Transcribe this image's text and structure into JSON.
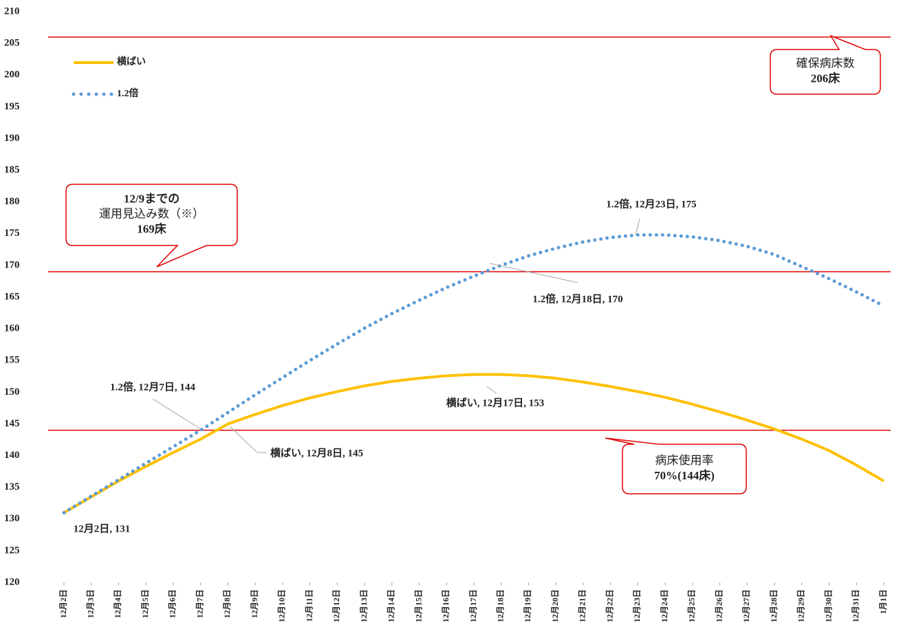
{
  "chart_data": {
    "type": "line",
    "categories": [
      "12月2日",
      "12月3日",
      "12月4日",
      "12月5日",
      "12月6日",
      "12月7日",
      "12月8日",
      "12月9日",
      "12月10日",
      "12月11日",
      "12月12日",
      "12月13日",
      "12月14日",
      "12月15日",
      "12月16日",
      "12月17日",
      "12月18日",
      "12月19日",
      "12月20日",
      "12月21日",
      "12月22日",
      "12月23日",
      "12月24日",
      "12月25日",
      "12月26日",
      "12月27日",
      "12月28日",
      "12月29日",
      "12月30日",
      "12月31日",
      "1月1日"
    ],
    "series": [
      {
        "name": "横ばい",
        "color": "#ffc000",
        "style": "solid",
        "values": [
          131,
          133.5,
          136,
          138.3,
          140.5,
          142.6,
          145,
          146.5,
          147.9,
          149.1,
          150.1,
          151,
          151.7,
          152.2,
          152.6,
          152.8,
          152.8,
          152.6,
          152.2,
          151.6,
          150.9,
          150.1,
          149.2,
          148.1,
          146.9,
          145.6,
          144.2,
          142.6,
          140.8,
          138.5,
          136
        ]
      },
      {
        "name": "1.2倍",
        "color": "#5b9bd5",
        "style": "dotted",
        "values": [
          131,
          133.6,
          136.2,
          138.8,
          141.4,
          144,
          146.8,
          149.6,
          152.3,
          155,
          157.6,
          160.1,
          162.4,
          164.5,
          166.5,
          168.3,
          170,
          171.5,
          172.7,
          173.7,
          174.4,
          174.8,
          174.8,
          174.5,
          173.9,
          173,
          171.7,
          169.8,
          167.9,
          165.8,
          163.6
        ]
      }
    ],
    "ylim": [
      120,
      210
    ],
    "yticks": [
      120,
      125,
      130,
      135,
      140,
      145,
      150,
      155,
      160,
      165,
      170,
      175,
      180,
      185,
      190,
      195,
      200,
      205,
      210
    ],
    "reference_lines": [
      {
        "value": 206,
        "color": "#e00000"
      },
      {
        "value": 169,
        "color": "#e00000"
      },
      {
        "value": 144,
        "color": "#e00000"
      }
    ],
    "legend": "top-left",
    "annotations": [
      "1.2倍, 12月23日, 175",
      "1.2倍, 12月18日, 170",
      "1.2倍, 12月7日, 144",
      "横ばい, 12月17日, 153",
      "横ばい, 12月8日, 145",
      "12月2日, 131"
    ],
    "callouts": [
      {
        "lines": [
          "確保病床数",
          "206床"
        ]
      },
      {
        "lines": [
          "12/9までの",
          "運用見込み数（※）",
          "169床"
        ]
      },
      {
        "lines": [
          "病床使用率",
          "70%(144床)"
        ]
      }
    ]
  }
}
